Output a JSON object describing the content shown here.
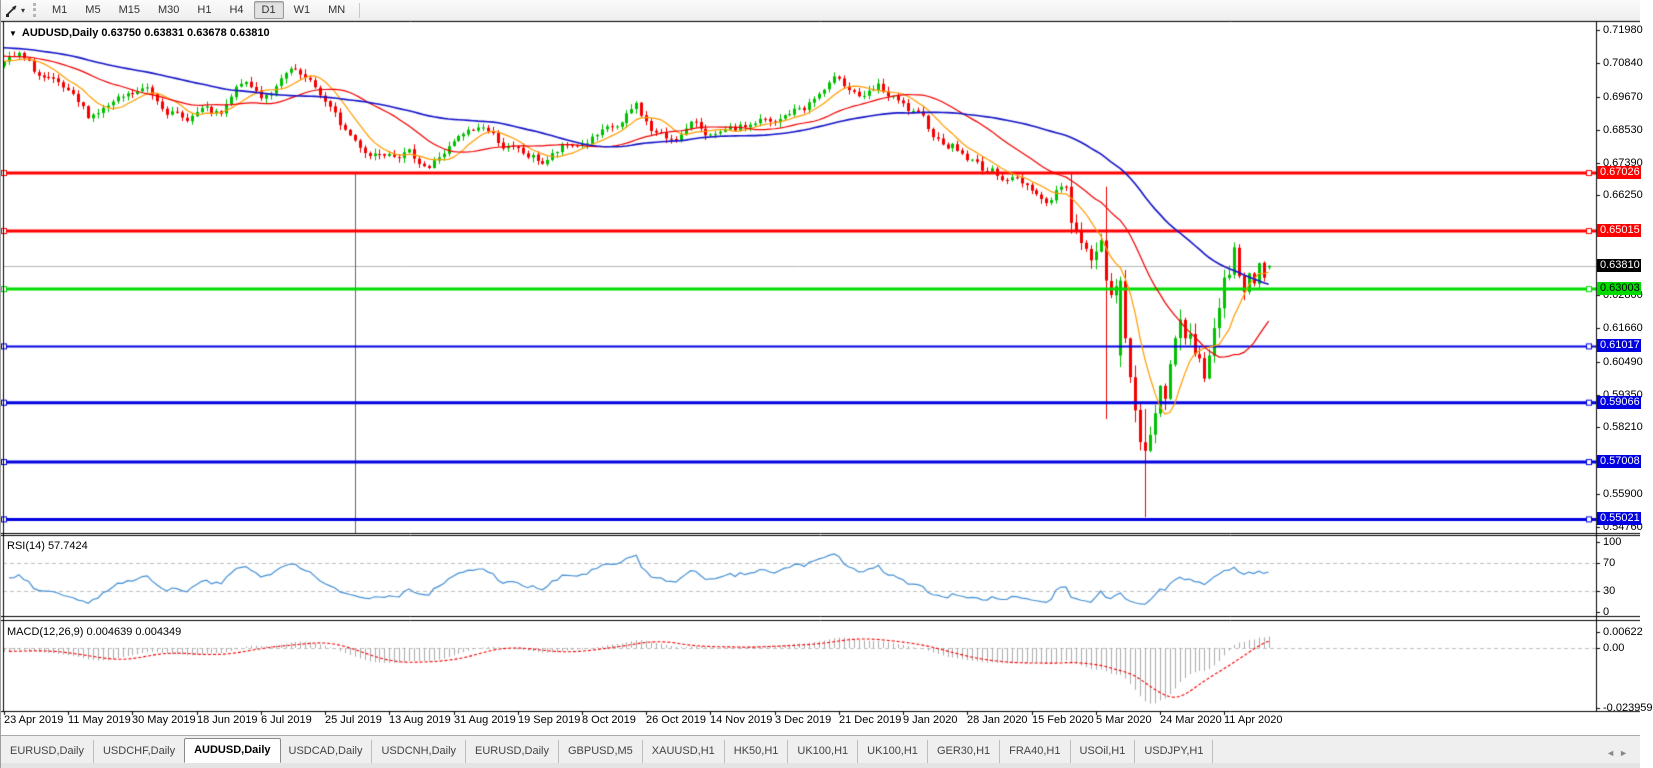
{
  "toolbar": {
    "cursor_icon": "chart-cursor",
    "dropdown_glyph": "▾",
    "timeframes": [
      "M1",
      "M5",
      "M15",
      "M30",
      "H1",
      "H4",
      "D1",
      "W1",
      "MN"
    ],
    "active_timeframe": "D1"
  },
  "header": {
    "dropdown_glyph": "▼",
    "symbol": "AUDUSD,Daily",
    "ohlc": "0.63750 0.63831 0.63678 0.63810"
  },
  "main_axis": {
    "ticks": [
      "0.71980",
      "0.70840",
      "0.69670",
      "0.68530",
      "0.67390",
      "0.66250",
      "0.62800",
      "0.61660",
      "0.60490",
      "0.59350",
      "0.58210",
      "0.55900",
      "0.54760"
    ]
  },
  "lines": [
    {
      "price": "0.67026",
      "color": "#FF0000",
      "text": "#FFFFFF",
      "w": 3
    },
    {
      "price": "0.65015",
      "color": "#FF0000",
      "text": "#FFFFFF",
      "w": 3
    },
    {
      "price": "0.63003",
      "color": "#00DC00",
      "text": "#000000",
      "w": 3
    },
    {
      "price": "0.61017",
      "color": "#0000E0",
      "text": "#FFFFFF",
      "w": 2
    },
    {
      "price": "0.59066",
      "color": "#0000E0",
      "text": "#FFFFFF",
      "w": 3
    },
    {
      "price": "0.57008",
      "color": "#0000E0",
      "text": "#FFFFFF",
      "w": 3
    },
    {
      "price": "0.55021",
      "color": "#0000E0",
      "text": "#FFFFFF",
      "w": 3
    }
  ],
  "current_price": "0.63810",
  "rsi": {
    "label": "RSI(14) 57.7424",
    "ticks": [
      "100",
      "70",
      "30",
      "0"
    ],
    "levels": [
      70,
      30
    ]
  },
  "macd": {
    "label": "MACD(12,26,9) 0.004639 0.004349",
    "ticks": [
      "0.00622",
      "0.00",
      "-0.023959"
    ]
  },
  "time_axis": [
    "23 Apr 2019",
    "11 May 2019",
    "30 May 2019",
    "18 Jun 2019",
    "6 Jul 2019",
    "25 Jul 2019",
    "13 Aug 2019",
    "31 Aug 2019",
    "19 Sep 2019",
    "8 Oct 2019",
    "26 Oct 2019",
    "14 Nov 2019",
    "3 Dec 2019",
    "21 Dec 2019",
    "9 Jan 2020",
    "28 Jan 2020",
    "15 Feb 2020",
    "5 Mar 2020",
    "24 Mar 2020",
    "11 Apr 2020"
  ],
  "tabs": {
    "items": [
      "EURUSD,Daily",
      "USDCHF,Daily",
      "AUDUSD,Daily",
      "USDCAD,Daily",
      "USDCNH,Daily",
      "EURUSD,Daily",
      "GBPUSD,M5",
      "XAUUSD,H1",
      "HK50,H1",
      "UK100,H1",
      "UK100,H1",
      "GER30,H1",
      "FRA40,H1",
      "USOil,H1",
      "USDJPY,H1"
    ],
    "active_index": 2,
    "scroll_left": "◄",
    "scroll_right": "►"
  },
  "colors": {
    "up": "#00C000",
    "down": "#F40000",
    "ma_fast": "#FF9C00",
    "ma_mid": "#F00000",
    "ma_slow": "#1414C8",
    "rsi_line": "#4690D4",
    "macd_hist": "#ABABAB",
    "macd_signal": "#F40000",
    "current_line": "#B4B4B4",
    "grid_dash": "#C0C0C0",
    "vline": "#666666"
  },
  "chart_data": {
    "type": "candlestick",
    "symbol": "AUDUSD",
    "timeframe": "Daily",
    "last_bar": {
      "open": 0.6375,
      "high": 0.63831,
      "low": 0.63678,
      "close": 0.6381
    },
    "bars": 257,
    "price_top": 0.7226,
    "price_bottom": 0.5455,
    "h_lines": [
      0.67026,
      0.65015,
      0.63003,
      0.61017,
      0.59066,
      0.57008,
      0.55021
    ],
    "current_price": 0.6381,
    "vline": {
      "bar": 71,
      "from_price": 0.67026
    },
    "seed": 7,
    "noise": 0.0016,
    "anchors": [
      [
        -60,
        0.7185
      ],
      [
        -30,
        0.715
      ],
      [
        0,
        0.709
      ],
      [
        3,
        0.7105
      ],
      [
        7,
        0.704
      ],
      [
        12,
        0.6985
      ],
      [
        17,
        0.69
      ],
      [
        20,
        0.6925
      ],
      [
        24,
        0.6955
      ],
      [
        29,
        0.6992
      ],
      [
        33,
        0.693
      ],
      [
        36,
        0.6885
      ],
      [
        40,
        0.692
      ],
      [
        44,
        0.6895
      ],
      [
        48,
        0.7015
      ],
      [
        52,
        0.697
      ],
      [
        55,
        0.7
      ],
      [
        58,
        0.7052
      ],
      [
        61,
        0.7018
      ],
      [
        64,
        0.6975
      ],
      [
        68,
        0.687
      ],
      [
        71,
        0.6815
      ],
      [
        74,
        0.677
      ],
      [
        78,
        0.679
      ],
      [
        82,
        0.677
      ],
      [
        86,
        0.6725
      ],
      [
        89,
        0.6775
      ],
      [
        93,
        0.683
      ],
      [
        97,
        0.6865
      ],
      [
        101,
        0.68
      ],
      [
        105,
        0.6765
      ],
      [
        109,
        0.674
      ],
      [
        113,
        0.6785
      ],
      [
        117,
        0.6805
      ],
      [
        121,
        0.6835
      ],
      [
        125,
        0.687
      ],
      [
        128,
        0.6935
      ],
      [
        131,
        0.685
      ],
      [
        134,
        0.682
      ],
      [
        137,
        0.6838
      ],
      [
        140,
        0.6875
      ],
      [
        144,
        0.6825
      ],
      [
        147,
        0.684
      ],
      [
        150,
        0.686
      ],
      [
        153,
        0.6885
      ],
      [
        156,
        0.6865
      ],
      [
        159,
        0.691
      ],
      [
        162,
        0.693
      ],
      [
        165,
        0.6975
      ],
      [
        169,
        0.703
      ],
      [
        172,
        0.699
      ],
      [
        174,
        0.696
      ],
      [
        177,
        0.6995
      ],
      [
        180,
        0.6955
      ],
      [
        183,
        0.6915
      ],
      [
        186,
        0.688
      ],
      [
        189,
        0.682
      ],
      [
        192,
        0.68
      ],
      [
        195,
        0.6755
      ],
      [
        198,
        0.672
      ],
      [
        201,
        0.67
      ],
      [
        204,
        0.6685
      ],
      [
        208,
        0.6655
      ],
      [
        211,
        0.66
      ],
      [
        214,
        0.666
      ],
      [
        215,
        0.665
      ]
    ],
    "tail_start": 216,
    "tail_closes": [
      0.653,
      0.65,
      0.646,
      0.644,
      0.64,
      0.643,
      0.647,
      0.633,
      0.628,
      0.631,
      0.633,
      0.613,
      0.5995,
      0.588,
      0.577,
      0.574,
      0.5795,
      0.587,
      0.5965,
      0.592,
      0.604,
      0.613,
      0.6195,
      0.613,
      0.6145,
      0.6075,
      0.606,
      0.599,
      0.607,
      0.6165,
      0.6235,
      0.634,
      0.635,
      0.6445,
      0.6345,
      0.629,
      0.6355,
      0.632,
      0.639,
      0.634,
      0.6381
    ],
    "wick_overrides": {
      "223": {
        "h": 0.6655,
        "l": 0.585
      },
      "226": {
        "o": 0.607,
        "l": 0.603
      },
      "231": {
        "l": 0.551,
        "h": 0.5885
      },
      "243": {
        "l": 0.5978
      },
      "249": {
        "h": 0.6462
      },
      "251": {
        "l": 0.6262
      },
      "256": {
        "o": 0.6375,
        "h": 0.63831,
        "l": 0.63678,
        "c": 0.6381
      }
    },
    "indicators": {
      "ma_fast_period": 8,
      "ma_mid_period": 24,
      "ma_slow_period": 55,
      "rsi_period": 14,
      "rsi_current": 57.7424,
      "rsi_range": [
        109,
        -6
      ],
      "rsi_levels": [
        70,
        30
      ],
      "macd_params": [
        12,
        26,
        9
      ],
      "macd_current": [
        0.004639,
        0.004349
      ],
      "macd_range": [
        0.0108,
        -0.0252
      ]
    },
    "x_labels": [
      "23 Apr 2019",
      "11 May 2019",
      "30 May 2019",
      "18 Jun 2019",
      "6 Jul 2019",
      "25 Jul 2019",
      "13 Aug 2019",
      "31 Aug 2019",
      "19 Sep 2019",
      "8 Oct 2019",
      "26 Oct 2019",
      "14 Nov 2019",
      "3 Dec 2019",
      "21 Dec 2019",
      "9 Jan 2020",
      "28 Jan 2020",
      "15 Feb 2020",
      "5 Mar 2020",
      "24 Mar 2020",
      "11 Apr 2020"
    ]
  }
}
